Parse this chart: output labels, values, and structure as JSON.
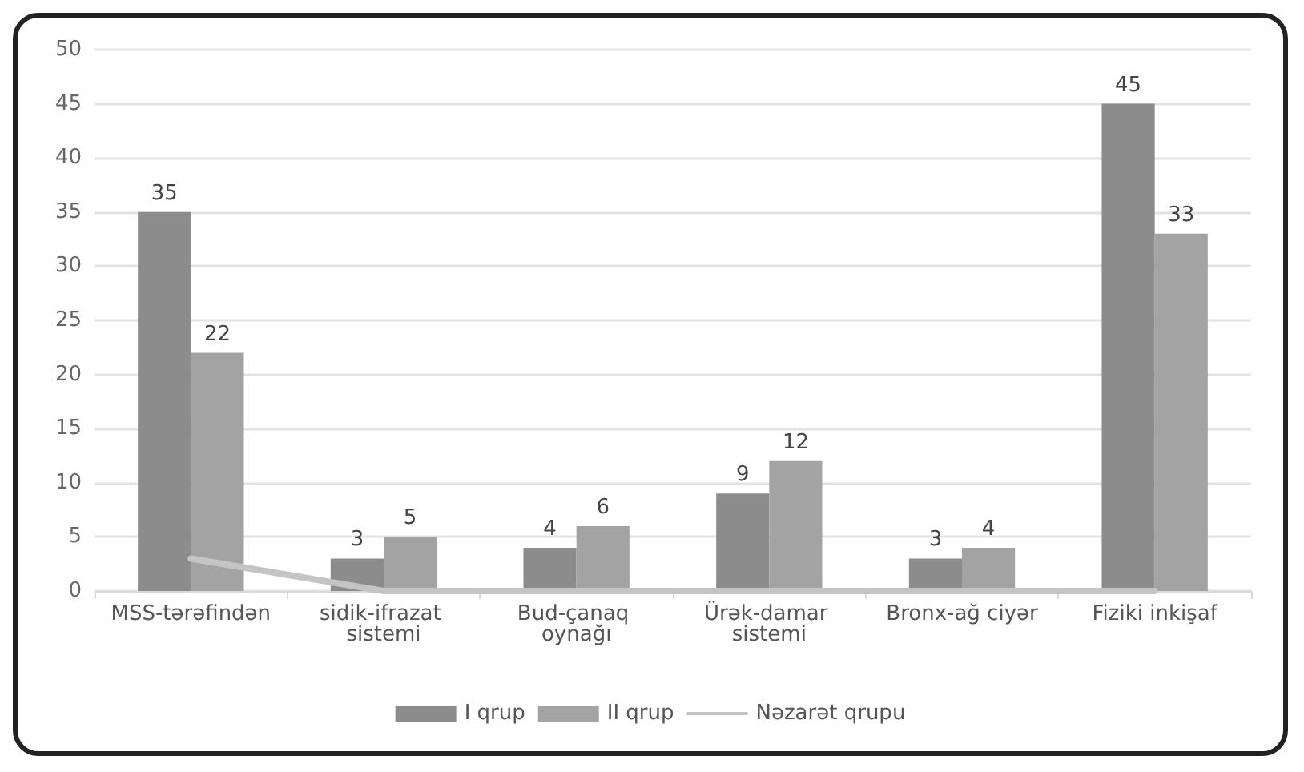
{
  "chart_data": {
    "type": "bar",
    "categories": [
      "MSS-tərəfindən",
      "sidik-ifrazat sistemi",
      "Bud-çanaq oynağı",
      "Ürək-damar sistemi",
      "Bronx-ağ ciyər",
      "Fiziki inkişaf"
    ],
    "series": [
      {
        "name": "I qrup",
        "color": "#8c8c8c",
        "values": [
          35,
          3,
          4,
          9,
          3,
          45
        ],
        "value_labels": [
          "35",
          "3",
          "4",
          "9",
          "3",
          "45"
        ]
      },
      {
        "name": "II qrup",
        "color": "#a3a3a3",
        "values": [
          22,
          5,
          6,
          12,
          4,
          33
        ],
        "value_labels": [
          "22",
          "5",
          "6",
          "12",
          "4",
          "33"
        ]
      },
      {
        "name": "Nəzarət qrupu",
        "type": "line",
        "color": "#c4c4c4",
        "values": [
          3,
          0,
          0,
          0,
          0,
          0
        ]
      }
    ],
    "ylim": [
      0,
      50
    ],
    "yticks": [
      0,
      5,
      10,
      15,
      20,
      25,
      30,
      35,
      40,
      45,
      50
    ],
    "grid": "y",
    "legend": "bottom",
    "marker": "none",
    "line_style": "solid"
  }
}
